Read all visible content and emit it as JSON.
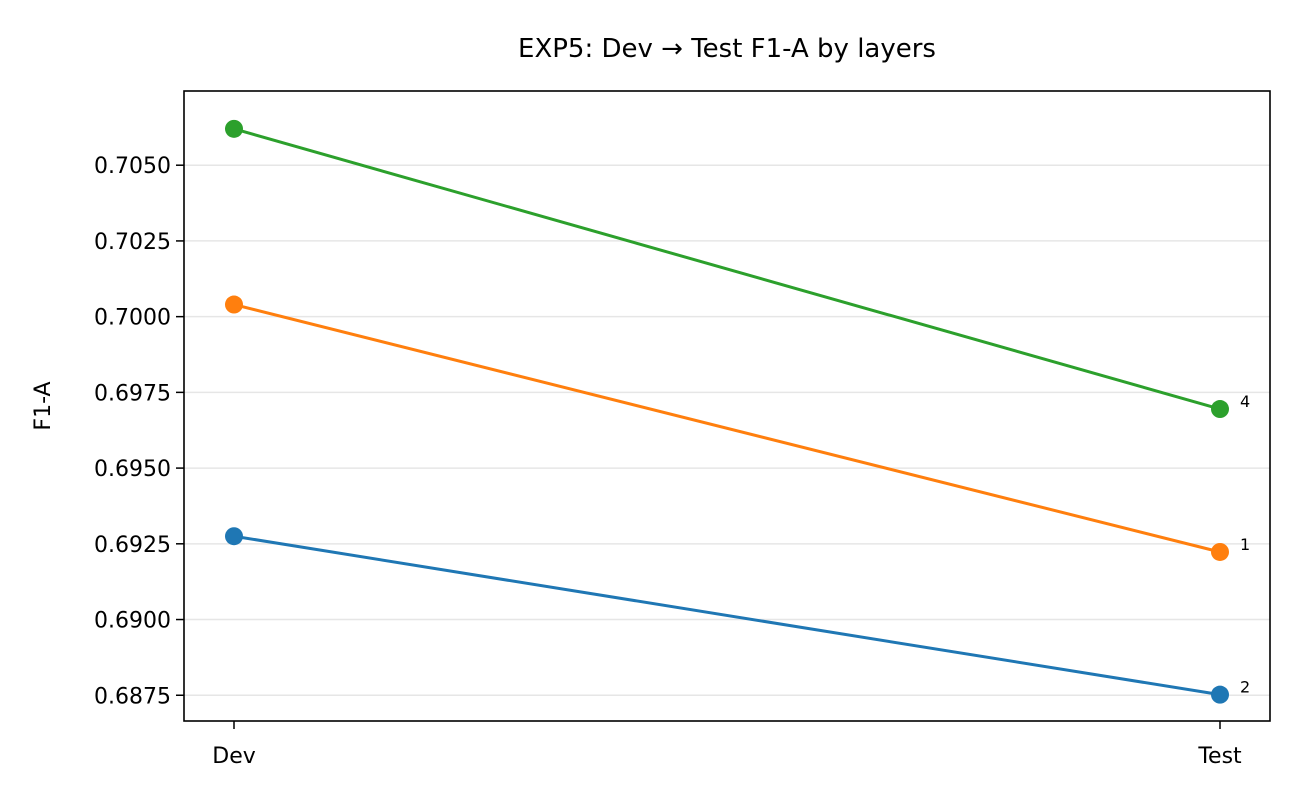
{
  "chart_data": {
    "type": "line",
    "title": "EXP5: Dev → Test F1-A by layers",
    "xlabel": "",
    "ylabel": "F1-A",
    "categories": [
      "Dev",
      "Test"
    ],
    "ylim": [
      0.68665,
      0.70745
    ],
    "yticks": [
      "0.6875",
      "0.6900",
      "0.6925",
      "0.6950",
      "0.6975",
      "0.7000",
      "0.7025",
      "0.7050"
    ],
    "grid": "horizontal",
    "legend": "none",
    "series": [
      {
        "name": "2",
        "values": [
          0.69275,
          0.68752
        ],
        "color": "#1f77b4"
      },
      {
        "name": "1",
        "values": [
          0.7004,
          0.69223
        ],
        "color": "#ff7f0e"
      },
      {
        "name": "4",
        "values": [
          0.7062,
          0.69695
        ],
        "color": "#2ca02c"
      }
    ]
  }
}
